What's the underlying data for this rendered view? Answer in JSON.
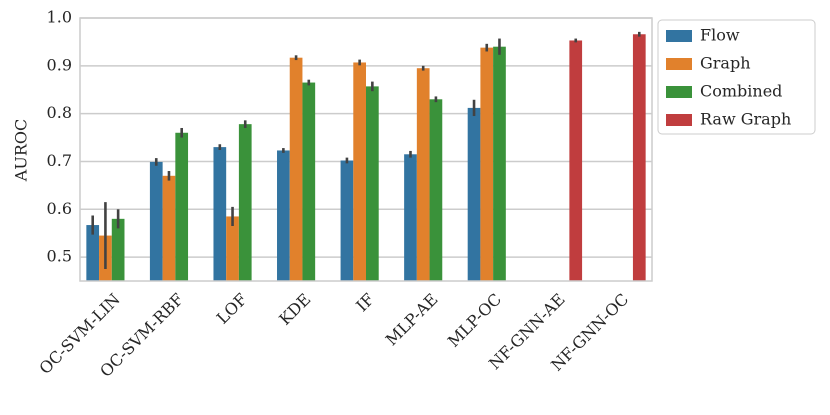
{
  "chart_data": {
    "type": "bar",
    "y_label": "AUROC",
    "categories": [
      "OC-SVM-LIN",
      "OC-SVM-RBF",
      "LOF",
      "KDE",
      "IF",
      "MLP-AE",
      "MLP-OC",
      "NF-GNN-AE",
      "NF-GNN-OC"
    ],
    "series": [
      {
        "name": "Flow",
        "color": "#3274a1",
        "values": [
          0.567,
          0.699,
          0.73,
          0.723,
          0.702,
          0.715,
          0.812,
          null,
          null
        ],
        "errors": [
          0.02,
          0.008,
          0.006,
          0.005,
          0.006,
          0.007,
          0.017,
          null,
          null
        ]
      },
      {
        "name": "Graph",
        "color": "#e1812c",
        "values": [
          0.545,
          0.67,
          0.585,
          0.917,
          0.907,
          0.895,
          0.938,
          null,
          null
        ],
        "errors": [
          0.07,
          0.01,
          0.02,
          0.005,
          0.006,
          0.005,
          0.008,
          null,
          null
        ]
      },
      {
        "name": "Combined",
        "color": "#3a923a",
        "values": [
          0.58,
          0.76,
          0.778,
          0.865,
          0.857,
          0.83,
          0.94,
          null,
          null
        ],
        "errors": [
          0.02,
          0.01,
          0.008,
          0.006,
          0.01,
          0.006,
          0.017,
          null,
          null
        ]
      },
      {
        "name": "Raw Graph",
        "color": "#c03d3e",
        "values": [
          null,
          null,
          null,
          null,
          null,
          null,
          null,
          0.953,
          0.966
        ],
        "errors": [
          null,
          null,
          null,
          null,
          null,
          null,
          null,
          0.004,
          0.005
        ]
      }
    ],
    "ylim": [
      0.45,
      1.0
    ],
    "yticks": [
      0.5,
      0.6,
      0.7,
      0.8,
      0.9,
      {
        "value": 1.0,
        "label": "1.0"
      }
    ],
    "grid": true,
    "legend": "outside-right"
  }
}
